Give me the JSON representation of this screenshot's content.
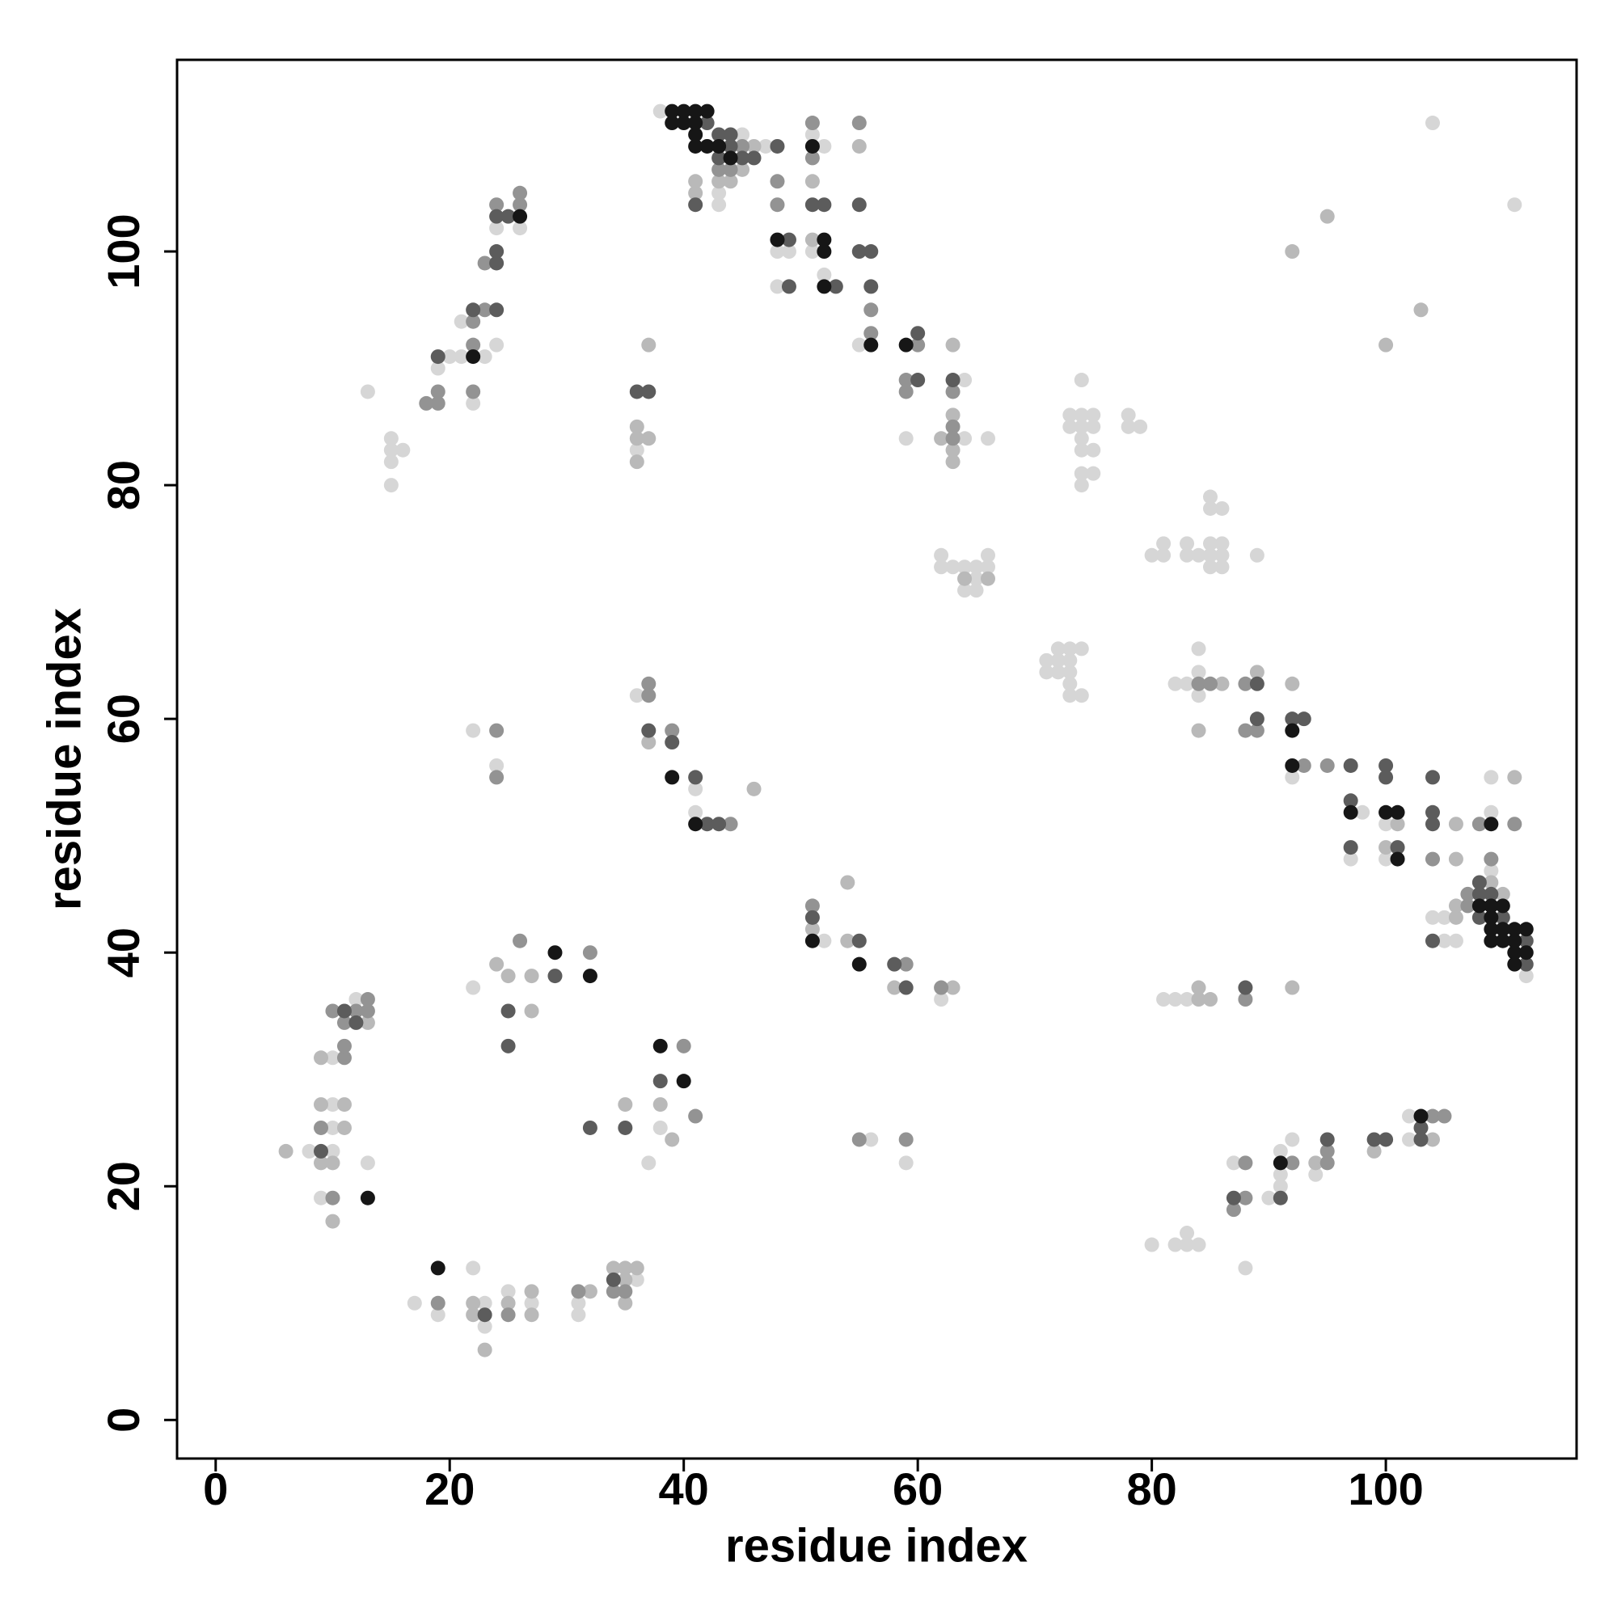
{
  "chart_data": {
    "type": "scatter",
    "xlabel": "residue index",
    "ylabel": "residue index",
    "xlim": [
      -3.3,
      116.3
    ],
    "ylim": [
      -3.3,
      116.4
    ],
    "xticks": [
      0,
      20,
      40,
      60,
      80,
      100
    ],
    "yticks": [
      0,
      20,
      40,
      60,
      80,
      100
    ],
    "grid": false,
    "series": [
      {
        "color": "#d6d6d6",
        "x": [
          38,
          45,
          47,
          52,
          51,
          43,
          43,
          48,
          48,
          49,
          51,
          52,
          55,
          59,
          64,
          64,
          66,
          62,
          62,
          63,
          64,
          65,
          65,
          64,
          65,
          66,
          66,
          13,
          15,
          15,
          15,
          15,
          16,
          19,
          20,
          21,
          21,
          22,
          23,
          24,
          24,
          26,
          22,
          24,
          36,
          36,
          41,
          41,
          8,
          10,
          9,
          10,
          10,
          10,
          12,
          13,
          22,
          37,
          38,
          17,
          19,
          22,
          23,
          23,
          25,
          27,
          31,
          31,
          36,
          52,
          56,
          59,
          62,
          71,
          71,
          72,
          72,
          72,
          73,
          73,
          73,
          73,
          73,
          74,
          74,
          73,
          73,
          74,
          74,
          74,
          74,
          74,
          74,
          74,
          75,
          75,
          75,
          75,
          78,
          78,
          79,
          80,
          81,
          81,
          83,
          83,
          84,
          85,
          85,
          85,
          85,
          85,
          86,
          86,
          86,
          86,
          89,
          82,
          83,
          84,
          84,
          84,
          92,
          98,
          97,
          100,
          100,
          109,
          109,
          104,
          105,
          109,
          112,
          105,
          106,
          81,
          82,
          83,
          80,
          82,
          83,
          83,
          84,
          87,
          88,
          90,
          91,
          91,
          91,
          92,
          94,
          102,
          102,
          104,
          111
        ],
        "values": [
          112,
          110,
          109,
          109,
          110,
          105,
          104,
          100,
          97,
          100,
          100,
          98,
          92,
          84,
          89,
          84,
          84,
          74,
          73,
          73,
          73,
          73,
          72,
          71,
          71,
          74,
          73,
          88,
          84,
          83,
          82,
          80,
          83,
          90,
          91,
          91,
          94,
          87,
          91,
          92,
          102,
          102,
          59,
          56,
          83,
          62,
          54,
          52,
          23,
          23,
          19,
          25,
          27,
          31,
          36,
          22,
          37,
          22,
          25,
          10,
          9,
          13,
          10,
          8,
          11,
          10,
          10,
          9,
          12,
          41,
          24,
          22,
          36,
          65,
          64,
          66,
          65,
          64,
          66,
          65,
          64,
          63,
          62,
          66,
          62,
          86,
          85,
          89,
          86,
          85,
          84,
          83,
          81,
          80,
          86,
          85,
          83,
          81,
          86,
          85,
          85,
          74,
          75,
          74,
          75,
          74,
          74,
          79,
          78,
          75,
          74,
          73,
          78,
          75,
          74,
          73,
          74,
          63,
          63,
          66,
          64,
          62,
          55,
          52,
          48,
          51,
          48,
          55,
          52,
          43,
          43,
          47,
          38,
          41,
          41,
          36,
          36,
          36,
          15,
          15,
          16,
          15,
          15,
          22,
          13,
          19,
          23,
          21,
          20,
          24,
          21,
          26,
          24,
          111,
          104
        ]
      },
      {
        "color": "#b9b9b9",
        "x": [
          46,
          45,
          41,
          43,
          44,
          41,
          51,
          51,
          55,
          63,
          63,
          63,
          63,
          62,
          64,
          66,
          36,
          36,
          37,
          36,
          37,
          37,
          46,
          6,
          9,
          10,
          10,
          11,
          9,
          11,
          9,
          13,
          24,
          25,
          27,
          27,
          35,
          38,
          39,
          22,
          22,
          23,
          25,
          27,
          27,
          32,
          34,
          35,
          35,
          35,
          36,
          51,
          54,
          54,
          58,
          63,
          84,
          86,
          89,
          92,
          101,
          100,
          106,
          106,
          111,
          106,
          106,
          109,
          110,
          84,
          84,
          85,
          92,
          94,
          99,
          104,
          92,
          95,
          100,
          103
        ],
        "values": [
          109,
          107,
          106,
          106,
          106,
          105,
          106,
          101,
          109,
          92,
          86,
          83,
          82,
          84,
          72,
          72,
          85,
          84,
          84,
          82,
          92,
          58,
          54,
          23,
          22,
          22,
          17,
          25,
          27,
          27,
          31,
          34,
          39,
          38,
          38,
          35,
          27,
          27,
          24,
          10,
          9,
          6,
          10,
          11,
          9,
          11,
          13,
          13,
          12,
          10,
          13,
          42,
          46,
          41,
          37,
          37,
          59,
          63,
          64,
          63,
          51,
          49,
          51,
          48,
          55,
          43,
          44,
          46,
          45,
          37,
          36,
          36,
          37,
          22,
          23,
          24,
          100,
          103,
          92,
          95
        ]
      },
      {
        "color": "#939393",
        "x": [
          43,
          44,
          45,
          48,
          48,
          51,
          51,
          55,
          56,
          56,
          59,
          59,
          60,
          63,
          63,
          63,
          18,
          19,
          19,
          22,
          22,
          22,
          23,
          23,
          24,
          26,
          26,
          24,
          24,
          37,
          37,
          39,
          44,
          10,
          9,
          11,
          11,
          10,
          11,
          12,
          13,
          13,
          26,
          32,
          40,
          41,
          19,
          25,
          31,
          34,
          35,
          51,
          59,
          62,
          55,
          59,
          84,
          85,
          88,
          88,
          89,
          93,
          95,
          104,
          108,
          109,
          111,
          107,
          107,
          88,
          87,
          88,
          88,
          92,
          95,
          95,
          104,
          105
        ],
        "values": [
          107,
          107,
          109,
          106,
          104,
          111,
          108,
          111,
          95,
          93,
          89,
          88,
          92,
          88,
          85,
          84,
          87,
          87,
          88,
          92,
          94,
          88,
          95,
          99,
          104,
          104,
          105,
          59,
          55,
          63,
          62,
          59,
          51,
          19,
          25,
          31,
          32,
          35,
          34,
          35,
          36,
          35,
          41,
          40,
          32,
          26,
          10,
          9,
          11,
          11,
          11,
          44,
          39,
          37,
          24,
          24,
          63,
          63,
          63,
          59,
          59,
          56,
          56,
          48,
          51,
          48,
          51,
          45,
          44,
          36,
          18,
          22,
          19,
          22,
          23,
          22,
          26,
          26
        ]
      },
      {
        "color": "#5c5c5c",
        "x": [
          42,
          43,
          44,
          44,
          48,
          43,
          45,
          46,
          41,
          51,
          52,
          49,
          49,
          53,
          55,
          55,
          56,
          56,
          60,
          60,
          63,
          19,
          22,
          24,
          24,
          24,
          24,
          25,
          36,
          37,
          37,
          39,
          41,
          42,
          43,
          9,
          11,
          12,
          25,
          25,
          29,
          32,
          35,
          38,
          23,
          34,
          51,
          55,
          58,
          59,
          89,
          89,
          92,
          93,
          97,
          97,
          97,
          100,
          100,
          101,
          104,
          104,
          104,
          108,
          108,
          108,
          109,
          110,
          112,
          112,
          104,
          88,
          87,
          91,
          95,
          99,
          100,
          103,
          103
        ],
        "values": [
          111,
          110,
          110,
          109,
          109,
          108,
          108,
          108,
          104,
          104,
          104,
          101,
          97,
          97,
          104,
          100,
          100,
          97,
          93,
          89,
          89,
          91,
          95,
          95,
          100,
          99,
          103,
          103,
          88,
          88,
          59,
          58,
          55,
          51,
          51,
          23,
          35,
          34,
          35,
          32,
          38,
          25,
          25,
          29,
          9,
          12,
          43,
          41,
          39,
          37,
          63,
          60,
          60,
          60,
          56,
          53,
          49,
          56,
          55,
          49,
          55,
          52,
          51,
          46,
          45,
          43,
          45,
          43,
          41,
          39,
          41,
          37,
          19,
          19,
          24,
          24,
          24,
          25,
          24
        ]
      },
      {
        "color": "#161616",
        "x": [
          39,
          40,
          41,
          42,
          39,
          40,
          41,
          41,
          41,
          42,
          43,
          44,
          48,
          51,
          52,
          52,
          52,
          56,
          59,
          22,
          26,
          39,
          41,
          13,
          29,
          32,
          38,
          40,
          19,
          51,
          55,
          92,
          92,
          97,
          100,
          101,
          101,
          109,
          108,
          109,
          109,
          109,
          109,
          110,
          110,
          110,
          111,
          111,
          111,
          111,
          112,
          112,
          91,
          103
        ],
        "values": [
          112,
          112,
          112,
          112,
          111,
          111,
          111,
          110,
          109,
          109,
          109,
          108,
          101,
          109,
          101,
          100,
          97,
          92,
          92,
          91,
          103,
          55,
          51,
          19,
          40,
          38,
          32,
          29,
          13,
          41,
          39,
          59,
          56,
          52,
          52,
          52,
          48,
          51,
          44,
          44,
          43,
          42,
          41,
          44,
          42,
          41,
          42,
          41,
          40,
          39,
          42,
          40,
          22,
          26
        ]
      }
    ]
  }
}
